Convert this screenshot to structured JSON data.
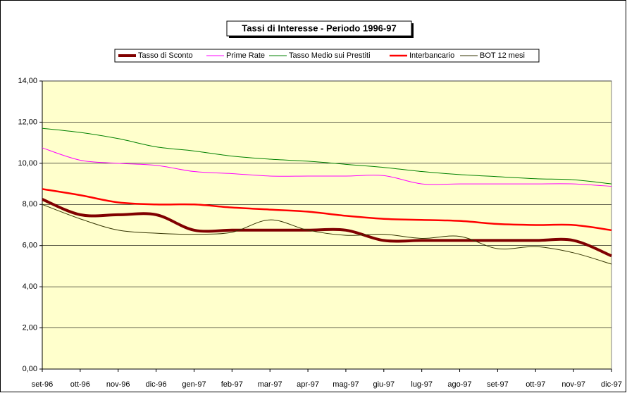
{
  "chart_data": {
    "type": "line",
    "title": "Tassi di Interesse - Periodo 1996-97",
    "categories": [
      "set-96",
      "ott-96",
      "nov-96",
      "dic-96",
      "gen-97",
      "feb-97",
      "mar-97",
      "apr-97",
      "mag-97",
      "giu-97",
      "lug-97",
      "ago-97",
      "set-97",
      "ott-97",
      "nov-97",
      "dic-97"
    ],
    "ylim": [
      0,
      14
    ],
    "yticks": [
      {
        "value": 0,
        "label": "0,00"
      },
      {
        "value": 2,
        "label": "2,00"
      },
      {
        "value": 4,
        "label": "4,00"
      },
      {
        "value": 6,
        "label": "6,00"
      },
      {
        "value": 8,
        "label": "8,00"
      },
      {
        "value": 10,
        "label": "10,00"
      },
      {
        "value": 12,
        "label": "12,00"
      },
      {
        "value": 14,
        "label": "14,00"
      }
    ],
    "grid": true,
    "series": [
      {
        "name": "Tasso di Sconto",
        "color": "#800000",
        "values": [
          8.25,
          7.5,
          7.5,
          7.5,
          6.75,
          6.75,
          6.75,
          6.75,
          6.75,
          6.25,
          6.25,
          6.25,
          6.25,
          6.25,
          6.25,
          5.5
        ]
      },
      {
        "name": "Prime Rate",
        "color": "#ff00ff",
        "values": [
          10.75,
          10.15,
          10.0,
          9.9,
          9.6,
          9.5,
          9.38,
          9.38,
          9.38,
          9.4,
          9.0,
          9.0,
          9.0,
          9.0,
          9.0,
          8.88
        ]
      },
      {
        "name": "Tasso Medio sui Prestiti",
        "color": "#008000",
        "values": [
          11.7,
          11.5,
          11.2,
          10.8,
          10.6,
          10.35,
          10.2,
          10.1,
          9.95,
          9.8,
          9.6,
          9.45,
          9.35,
          9.25,
          9.2,
          9.0
        ]
      },
      {
        "name": "Interbancario",
        "color": "#ff0000",
        "values": [
          8.75,
          8.45,
          8.1,
          8.0,
          8.0,
          7.85,
          7.75,
          7.65,
          7.45,
          7.3,
          7.25,
          7.2,
          7.05,
          7.0,
          7.0,
          6.75
        ]
      },
      {
        "name": "BOT 12 mesi",
        "color": "#333300",
        "values": [
          8.0,
          7.3,
          6.75,
          6.6,
          6.55,
          6.65,
          7.25,
          6.75,
          6.5,
          6.55,
          6.35,
          6.45,
          5.85,
          5.95,
          5.65,
          5.1
        ]
      }
    ]
  }
}
